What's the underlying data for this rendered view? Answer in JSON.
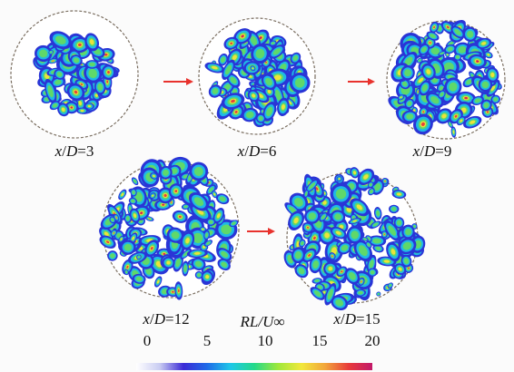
{
  "panels": [
    {
      "id": "p3",
      "value": "3"
    },
    {
      "id": "p6",
      "value": "6"
    },
    {
      "id": "p9",
      "value": "9"
    },
    {
      "id": "p12",
      "value": "12"
    },
    {
      "id": "p15",
      "value": "15"
    }
  ],
  "caption_prefix": "x/D=",
  "colorbar": {
    "label": "RL/U∞",
    "ticks": [
      "0",
      "5",
      "10",
      "15",
      "20"
    ],
    "colors": [
      "#ffffff",
      "#c9ccf2",
      "#3b2ad6",
      "#1e6be8",
      "#1ec8e8",
      "#23d98a",
      "#9ee83a",
      "#f2e83a",
      "#f2a53a",
      "#e83a3a",
      "#c2186a"
    ]
  },
  "arrow_color": "#e8322d",
  "circle_border_color": "#7a6e60"
}
